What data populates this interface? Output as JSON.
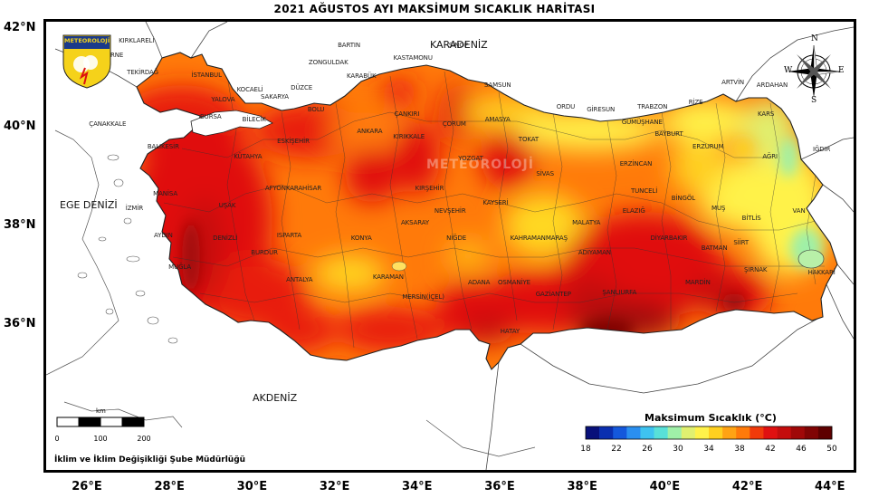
{
  "title": "2021 AĞUSTOS AYI MAKSİMUM SICAKLIK HARİTASI",
  "latitude_labels": [
    {
      "value": 42,
      "text": "42°N"
    },
    {
      "value": 40,
      "text": "40°N"
    },
    {
      "value": 38,
      "text": "38°N"
    },
    {
      "value": 36,
      "text": "36°N"
    }
  ],
  "longitude_labels": [
    {
      "value": 26,
      "text": "26°E"
    },
    {
      "value": 28,
      "text": "28°E"
    },
    {
      "value": 30,
      "text": "30°E"
    },
    {
      "value": 32,
      "text": "32°E"
    },
    {
      "value": 34,
      "text": "34°E"
    },
    {
      "value": 36,
      "text": "36°E"
    },
    {
      "value": 38,
      "text": "38°E"
    },
    {
      "value": 40,
      "text": "40°E"
    },
    {
      "value": 42,
      "text": "42°E"
    },
    {
      "value": 44,
      "text": "44°E"
    }
  ],
  "seas": {
    "black_sea": "KARADENİZ",
    "aegean": "EGE DENİZİ",
    "mediterranean": "AKDENİZ"
  },
  "logo_text": "METEOROLOJİ",
  "watermark": "METEOROLOJİ",
  "compass": {
    "n": "N",
    "s": "S",
    "e": "E",
    "w": "W"
  },
  "scale_bar": {
    "unit": "km",
    "ticks": [
      "0",
      "100",
      "200"
    ]
  },
  "legend": {
    "title": "Maksimum Sıcaklık (°C)",
    "tick_labels": [
      "18",
      "22",
      "26",
      "30",
      "34",
      "38",
      "42",
      "46",
      "50"
    ],
    "min": 18,
    "max": 50,
    "colors": [
      "#08107a",
      "#0a2fb0",
      "#1458dc",
      "#2a8ff0",
      "#3ec3f0",
      "#58e0d8",
      "#9ff0a8",
      "#e0f070",
      "#fff24a",
      "#ffd020",
      "#ffa314",
      "#ff7a0a",
      "#f03a0a",
      "#e01010",
      "#c40c0c",
      "#a00808",
      "#800404",
      "#5e0000"
    ]
  },
  "footer": "İklim ve İklim Değişikliği Şube Müdürlüğü",
  "provinces": [
    {
      "name": "KIRKLARELİ",
      "lon": 27.2,
      "lat": 41.75
    },
    {
      "name": "EDİRNE",
      "lon": 26.6,
      "lat": 41.45
    },
    {
      "name": "TEKİRDAĞ",
      "lon": 27.35,
      "lat": 41.1
    },
    {
      "name": "İSTANBUL",
      "lon": 28.9,
      "lat": 41.05
    },
    {
      "name": "KOCAELİ",
      "lon": 29.95,
      "lat": 40.75
    },
    {
      "name": "YALOVA",
      "lon": 29.3,
      "lat": 40.55
    },
    {
      "name": "SAKARYA",
      "lon": 30.55,
      "lat": 40.6
    },
    {
      "name": "DÜZCE",
      "lon": 31.2,
      "lat": 40.78
    },
    {
      "name": "ZONGULDAK",
      "lon": 31.85,
      "lat": 41.3
    },
    {
      "name": "BARTIN",
      "lon": 32.35,
      "lat": 41.65
    },
    {
      "name": "KARABÜK",
      "lon": 32.65,
      "lat": 41.02
    },
    {
      "name": "KASTAMONU",
      "lon": 33.9,
      "lat": 41.4
    },
    {
      "name": "SİNOP",
      "lon": 35.0,
      "lat": 41.65
    },
    {
      "name": "SAMSUN",
      "lon": 35.95,
      "lat": 40.85
    },
    {
      "name": "ORDU",
      "lon": 37.6,
      "lat": 40.4
    },
    {
      "name": "GİRESUN",
      "lon": 38.45,
      "lat": 40.35
    },
    {
      "name": "TRABZON",
      "lon": 39.7,
      "lat": 40.4
    },
    {
      "name": "RİZE",
      "lon": 40.75,
      "lat": 40.5
    },
    {
      "name": "ARTVİN",
      "lon": 41.65,
      "lat": 40.9
    },
    {
      "name": "ARDAHAN",
      "lon": 42.6,
      "lat": 40.85
    },
    {
      "name": "KARS",
      "lon": 42.45,
      "lat": 40.25
    },
    {
      "name": "IĞDIR",
      "lon": 43.8,
      "lat": 39.55
    },
    {
      "name": "AĞRI",
      "lon": 42.55,
      "lat": 39.4
    },
    {
      "name": "ERZURUM",
      "lon": 41.05,
      "lat": 39.6
    },
    {
      "name": "BAYBURT",
      "lon": 40.1,
      "lat": 39.85
    },
    {
      "name": "GÜMÜŞHANE",
      "lon": 39.45,
      "lat": 40.1
    },
    {
      "name": "ERZİNCAN",
      "lon": 39.3,
      "lat": 39.25
    },
    {
      "name": "TUNCELİ",
      "lon": 39.5,
      "lat": 38.7
    },
    {
      "name": "BİNGÖL",
      "lon": 40.45,
      "lat": 38.55
    },
    {
      "name": "MUŞ",
      "lon": 41.3,
      "lat": 38.35
    },
    {
      "name": "BİTLİS",
      "lon": 42.1,
      "lat": 38.15
    },
    {
      "name": "VAN",
      "lon": 43.25,
      "lat": 38.3
    },
    {
      "name": "HAKKARİ",
      "lon": 43.8,
      "lat": 37.05
    },
    {
      "name": "ŞIRNAK",
      "lon": 42.2,
      "lat": 37.1
    },
    {
      "name": "SİİRT",
      "lon": 41.85,
      "lat": 37.65
    },
    {
      "name": "BATMAN",
      "lon": 41.2,
      "lat": 37.55
    },
    {
      "name": "MARDİN",
      "lon": 40.8,
      "lat": 36.85
    },
    {
      "name": "DİYARBAKIR",
      "lon": 40.1,
      "lat": 37.75
    },
    {
      "name": "ELAZIĞ",
      "lon": 39.25,
      "lat": 38.3
    },
    {
      "name": "MALATYA",
      "lon": 38.1,
      "lat": 38.05
    },
    {
      "name": "ADIYAMAN",
      "lon": 38.3,
      "lat": 37.45
    },
    {
      "name": "ŞANLIURFA",
      "lon": 38.9,
      "lat": 36.65
    },
    {
      "name": "GAZİANTEP",
      "lon": 37.3,
      "lat": 36.6
    },
    {
      "name": "KAHRAMANMARAŞ",
      "lon": 36.95,
      "lat": 37.75
    },
    {
      "name": "OSMANİYE",
      "lon": 36.35,
      "lat": 36.85
    },
    {
      "name": "ADANA",
      "lon": 35.5,
      "lat": 36.85
    },
    {
      "name": "HATAY",
      "lon": 36.25,
      "lat": 35.85
    },
    {
      "name": "MERSİN(İÇEL)",
      "lon": 34.15,
      "lat": 36.55
    },
    {
      "name": "KARAMAN",
      "lon": 33.3,
      "lat": 36.95
    },
    {
      "name": "NİĞDE",
      "lon": 34.95,
      "lat": 37.75
    },
    {
      "name": "NEVŞEHİR",
      "lon": 34.8,
      "lat": 38.3
    },
    {
      "name": "AKSARAY",
      "lon": 33.95,
      "lat": 38.05
    },
    {
      "name": "KAYSERİ",
      "lon": 35.9,
      "lat": 38.45
    },
    {
      "name": "SİVAS",
      "lon": 37.1,
      "lat": 39.05
    },
    {
      "name": "TOKAT",
      "lon": 36.7,
      "lat": 39.75
    },
    {
      "name": "AMASYA",
      "lon": 35.95,
      "lat": 40.15
    },
    {
      "name": "ÇORUM",
      "lon": 34.9,
      "lat": 40.05
    },
    {
      "name": "ÇANKIRI",
      "lon": 33.75,
      "lat": 40.25
    },
    {
      "name": "YOZGAT",
      "lon": 35.3,
      "lat": 39.35
    },
    {
      "name": "KIRIKKALE",
      "lon": 33.8,
      "lat": 39.8
    },
    {
      "name": "KIRŞEHİR",
      "lon": 34.3,
      "lat": 38.75
    },
    {
      "name": "ANKARA",
      "lon": 32.85,
      "lat": 39.9
    },
    {
      "name": "BOLU",
      "lon": 31.55,
      "lat": 40.35
    },
    {
      "name": "BİLECİK",
      "lon": 30.05,
      "lat": 40.15
    },
    {
      "name": "BURSA",
      "lon": 29.0,
      "lat": 40.2
    },
    {
      "name": "ÇANAKKALE",
      "lon": 26.5,
      "lat": 40.05
    },
    {
      "name": "BALIKESİR",
      "lon": 27.85,
      "lat": 39.6
    },
    {
      "name": "ESKİŞEHİR",
      "lon": 31.0,
      "lat": 39.7
    },
    {
      "name": "KÜTAHYA",
      "lon": 29.9,
      "lat": 39.4
    },
    {
      "name": "AFYONKARAHİSAR",
      "lon": 31.0,
      "lat": 38.75
    },
    {
      "name": "UŞAK",
      "lon": 29.4,
      "lat": 38.4
    },
    {
      "name": "MANİSA",
      "lon": 27.9,
      "lat": 38.65
    },
    {
      "name": "İZMİR",
      "lon": 27.15,
      "lat": 38.35
    },
    {
      "name": "AYDIN",
      "lon": 27.85,
      "lat": 37.8
    },
    {
      "name": "DENİZLİ",
      "lon": 29.35,
      "lat": 37.75
    },
    {
      "name": "MUĞLA",
      "lon": 28.25,
      "lat": 37.15
    },
    {
      "name": "BURDUR",
      "lon": 30.3,
      "lat": 37.45
    },
    {
      "name": "ISPARTA",
      "lon": 30.9,
      "lat": 37.8
    },
    {
      "name": "ANTALYA",
      "lon": 31.15,
      "lat": 36.9
    },
    {
      "name": "KONYA",
      "lon": 32.65,
      "lat": 37.75
    }
  ]
}
